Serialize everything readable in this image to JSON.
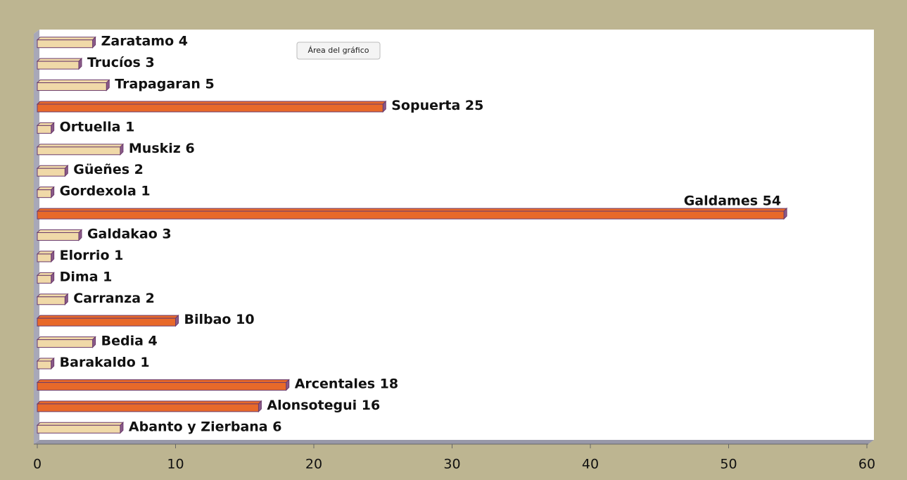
{
  "chart_data": {
    "type": "bar",
    "orientation": "horizontal",
    "tooltip": "Área del gráfico",
    "values": [
      4,
      3,
      5,
      25,
      1,
      6,
      2,
      1,
      54,
      3,
      1,
      1,
      2,
      10,
      4,
      1,
      18,
      16,
      6
    ],
    "value_labels": [
      "Zaratamo 4",
      "Trucíos 3",
      "Trapagaran 5",
      "Sopuerta 25",
      "Ortuella 1",
      "Muskiz 6",
      "Güeñes 2",
      "Gordexola 1",
      "Galdames 54",
      "Galdakao 3",
      "Elorrio 1",
      "Dima 1",
      "Carranza 2",
      "Bilbao 10",
      "Bedia 4",
      "Barakaldo 1",
      "Arcentales 18",
      "Alonsotegui 16",
      "Abanto y Zierbana 6"
    ],
    "colors": [
      "#f0d9a8",
      "#f0d9a8",
      "#f0d9a8",
      "#e8692a",
      "#f0d9a8",
      "#f0d9a8",
      "#f0d9a8",
      "#f0d9a8",
      "#e8692a",
      "#f0d9a8",
      "#f0d9a8",
      "#f0d9a8",
      "#f0d9a8",
      "#e8692a",
      "#f0d9a8",
      "#f0d9a8",
      "#e8692a",
      "#e8692a",
      "#f0d9a8"
    ],
    "xlim": [
      0,
      60
    ],
    "xticks": [
      0,
      10,
      20,
      30,
      40,
      50,
      60
    ]
  }
}
